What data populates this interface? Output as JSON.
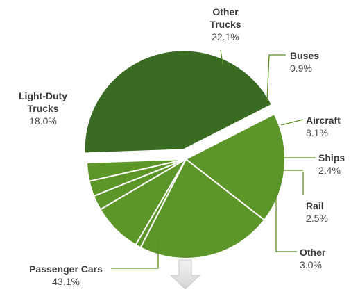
{
  "chart_data": {
    "type": "pie",
    "title": "",
    "slices": [
      {
        "name": "Passenger Cars",
        "value": 43.1,
        "label_value": "43.1%",
        "color": "#3a6b22"
      },
      {
        "name": "Light-Duty Trucks",
        "value": 18.0,
        "label_value": "18.0%",
        "color": "#5c9528"
      },
      {
        "name": "Other Trucks",
        "value": 22.1,
        "label_value": "22.1%",
        "color": "#5c9528"
      },
      {
        "name": "Buses",
        "value": 0.9,
        "label_value": "0.9%",
        "color": "#5c9528"
      },
      {
        "name": "Aircraft",
        "value": 8.1,
        "label_value": "8.1%",
        "color": "#5c9528"
      },
      {
        "name": "Ships",
        "value": 2.4,
        "label_value": "2.4%",
        "color": "#5c9528"
      },
      {
        "name": "Rail",
        "value": 2.5,
        "label_value": "2.5%",
        "color": "#5c9528"
      },
      {
        "name": "Other",
        "value": 3.0,
        "label_value": "3.0%",
        "color": "#5c9528"
      }
    ],
    "exploded_slice": "Passenger Cars",
    "legend": "none",
    "leader_color": "#5a8f23",
    "arrow_color": "#d9d9d9"
  }
}
